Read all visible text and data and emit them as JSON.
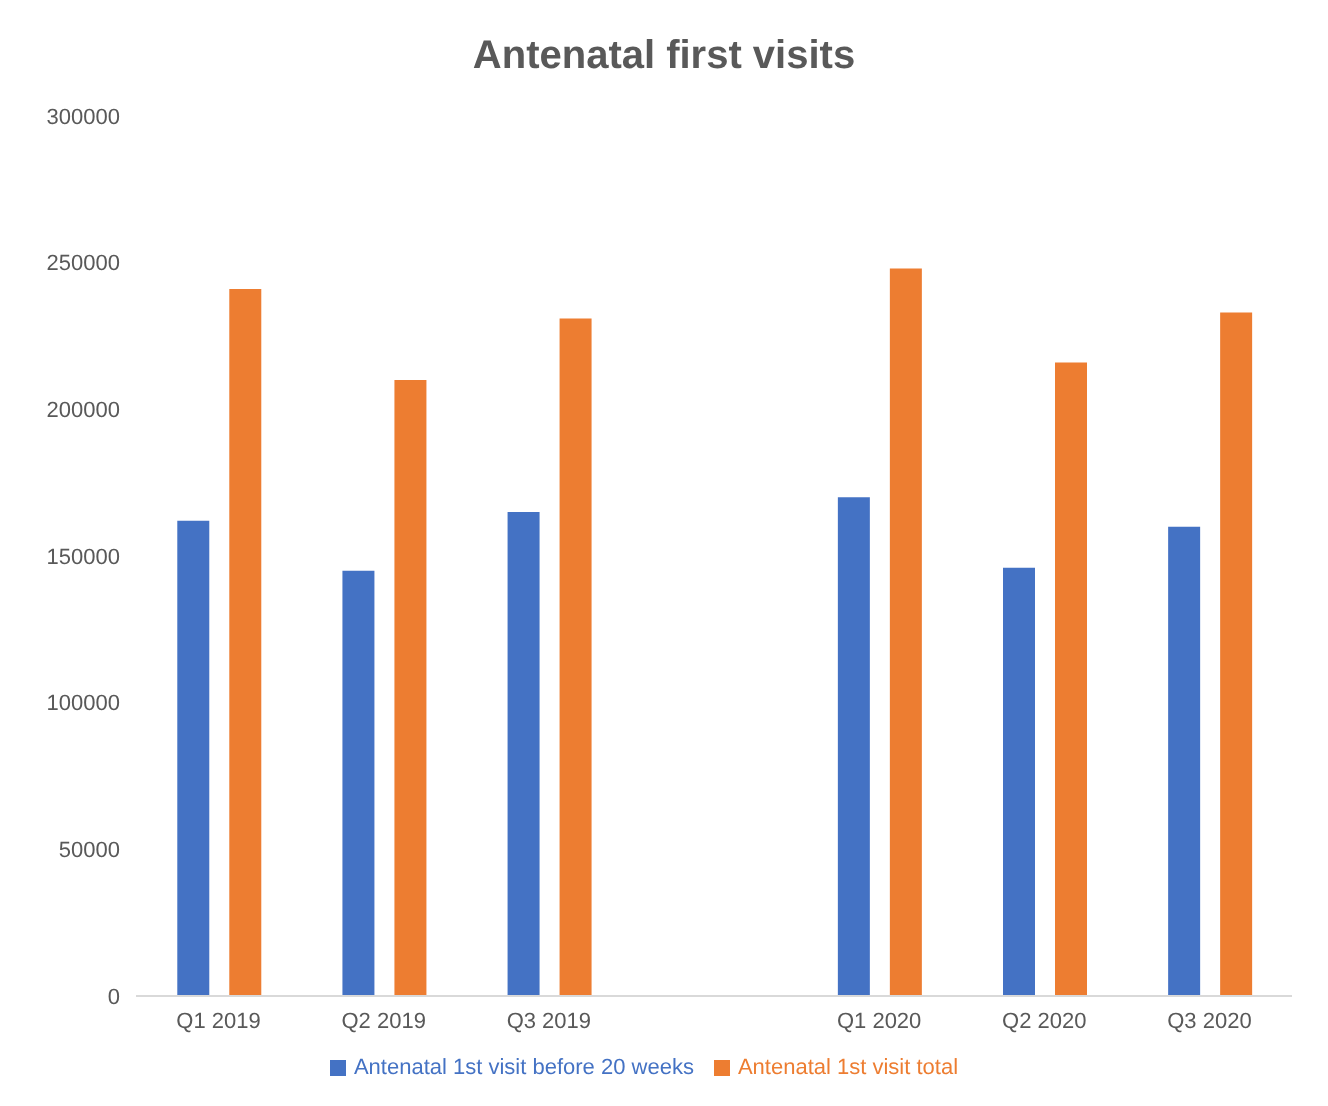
{
  "chart_data": {
    "type": "bar",
    "title": "Antenatal first visits",
    "categories": [
      "Q1 2019",
      "Q2 2019",
      "Q3 2019",
      null,
      "Q1 2020",
      "Q2 2020",
      "Q3 2020"
    ],
    "series": [
      {
        "name": "Antenatal 1st visit before 20 weeks",
        "color": "#4472c4",
        "values": [
          162000,
          145000,
          165000,
          null,
          170000,
          146000,
          160000
        ]
      },
      {
        "name": "Antenatal 1st visit total",
        "color": "#ed7d31",
        "values": [
          241000,
          210000,
          231000,
          null,
          248000,
          216000,
          233000
        ]
      }
    ],
    "ylim": [
      0,
      300000
    ],
    "yticks": [
      0,
      50000,
      100000,
      150000,
      200000,
      250000,
      300000
    ],
    "grid": false,
    "legend": "bottom"
  }
}
